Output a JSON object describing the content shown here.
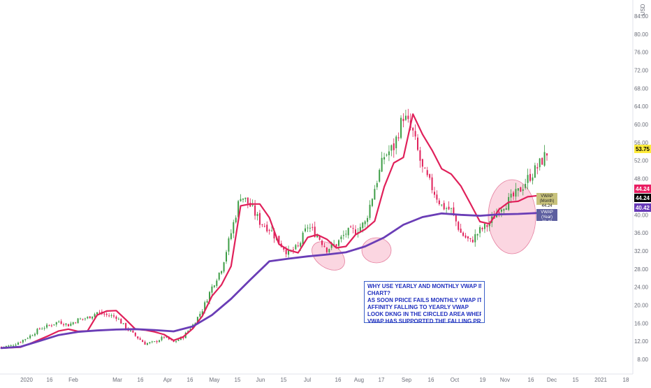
{
  "chart_data": {
    "type": "line",
    "currency_label": "USD",
    "x_tick_labels": [
      "2020",
      "16",
      "Feb",
      "Mar",
      "16",
      "Apr",
      "16",
      "May",
      "15",
      "Jun",
      "15",
      "Jul",
      "16",
      "Aug",
      "17",
      "Sep",
      "16",
      "Oct",
      "19",
      "Nov",
      "16",
      "Dec",
      "15",
      "2021",
      "18"
    ],
    "y_tick_labels": [
      "8.00",
      "12.00",
      "16.00",
      "20.00",
      "24.00",
      "28.00",
      "32.00",
      "36.00",
      "40.00",
      "44.00",
      "48.00",
      "52.00",
      "56.00",
      "60.00",
      "64.00",
      "68.00",
      "72.00",
      "76.00",
      "80.00",
      "84.00"
    ],
    "ylim": [
      6,
      86
    ],
    "grid": false,
    "last_price": "53.75",
    "price_tags": [
      {
        "value": "44.24",
        "color": "#e91e63",
        "text_color": "#ffffff"
      },
      {
        "value": "44.24",
        "color": "#000000",
        "text_color": "#ffffff"
      },
      {
        "value": "40.42",
        "color": "#673ab7",
        "text_color": "#ffffff"
      }
    ],
    "series": [
      {
        "name": "VWAP (Month)",
        "color": "#e0205a",
        "x": [
          0,
          4,
          8,
          12,
          16,
          20,
          24,
          28,
          32,
          36,
          40,
          44,
          48,
          52,
          56,
          60,
          64,
          68,
          72,
          76,
          80,
          84,
          88,
          92,
          96,
          100,
          104,
          108,
          112,
          116,
          120,
          124,
          128,
          132,
          136,
          140,
          144,
          148,
          152,
          156,
          160,
          164,
          168,
          172,
          176,
          180,
          184,
          188,
          192,
          196,
          200,
          204,
          208,
          212,
          216,
          220,
          224,
          228
        ],
        "y": [
          10.5,
          10.6,
          10.7,
          11.5,
          12.4,
          13.3,
          14.3,
          14.7,
          14.2,
          14.3,
          17.8,
          18.7,
          18.8,
          16.8,
          14.7,
          14.5,
          14.1,
          13.5,
          12.2,
          13.0,
          14.8,
          17.6,
          22.0,
          24.5,
          28.6,
          42.0,
          42.4,
          42.4,
          39.4,
          33.5,
          32.2,
          31.6,
          35.0,
          35.6,
          34.6,
          32.7,
          33.0,
          35.6,
          36.8,
          38.6,
          46.2,
          51.5,
          52.7,
          62.3,
          57.8,
          54.3,
          50.2,
          49.0,
          46.4,
          42.5,
          38.5,
          38.0,
          41.2,
          42.8,
          43.0,
          44.0,
          44.24,
          44.24
        ]
      },
      {
        "name": "VWAP (Year)",
        "color": "#6a3db6",
        "x": [
          0,
          8,
          16,
          24,
          32,
          40,
          48,
          56,
          64,
          72,
          80,
          88,
          96,
          104,
          112,
          120,
          128,
          136,
          144,
          152,
          160,
          168,
          176,
          184,
          192,
          200,
          208,
          216,
          224,
          228
        ],
        "y": [
          10.5,
          10.8,
          12.1,
          13.4,
          14.1,
          14.4,
          14.6,
          14.7,
          14.5,
          14.2,
          15.3,
          17.8,
          21.4,
          25.6,
          29.7,
          30.3,
          30.8,
          31.2,
          31.7,
          33.0,
          35.0,
          37.8,
          39.5,
          40.3,
          40.0,
          39.8,
          40.1,
          40.2,
          40.4,
          40.42
        ]
      },
      {
        "name": "Price",
        "color": "#3d9d46",
        "x": [
          0,
          4,
          8,
          12,
          16,
          20,
          24,
          28,
          32,
          36,
          40,
          44,
          48,
          52,
          56,
          60,
          64,
          68,
          72,
          76,
          80,
          84,
          88,
          92,
          96,
          100,
          104,
          108,
          112,
          116,
          120,
          124,
          128,
          132,
          136,
          140,
          144,
          148,
          152,
          156,
          160,
          164,
          168,
          172,
          176,
          180,
          184,
          188,
          192,
          196,
          200,
          204,
          208,
          212,
          216,
          220,
          224,
          228
        ],
        "y": [
          10.8,
          11.0,
          12.0,
          13.2,
          14.8,
          15.5,
          16.4,
          15.6,
          16.8,
          17.2,
          18.4,
          17.8,
          17.4,
          15.0,
          13.2,
          11.5,
          11.8,
          13.0,
          11.8,
          13.0,
          15.6,
          19.0,
          24.0,
          28.2,
          36.0,
          44.5,
          42.0,
          38.5,
          37.0,
          34.0,
          31.5,
          32.8,
          37.5,
          35.5,
          32.5,
          33.5,
          36.0,
          36.5,
          38.2,
          46.0,
          53.0,
          55.0,
          62.0,
          58.0,
          50.0,
          46.0,
          42.0,
          41.0,
          36.0,
          34.0,
          36.5,
          38.0,
          41.5,
          43.0,
          45.0,
          48.0,
          50.5,
          53.75
        ]
      }
    ],
    "callouts": [
      {
        "name": "VWAP (Month)",
        "value": "44.24"
      },
      {
        "name": "VWAP (Year)",
        "value": "40.42"
      }
    ]
  },
  "annotation": {
    "lines": [
      "WHY USE YEARLY AND MONTHLY VWAP IN THE",
      "CHART?",
      "AS SOON PRICE FAILS MONTHLY VWAP IT HAS HIGH",
      "AFFINITY FALLING TO YEARLY VWAP",
      "LOOK DKNG IN THE CIRCLED AREA  WHERE YEARLY",
      "VWAP HAS SUPPORTED THE FALLING PRICE."
    ],
    "color": "#1f2fbf"
  },
  "colors": {
    "up_candle": "#3d9d46",
    "down_candle": "#e0205a",
    "highlight_circle": "#f7b5c8",
    "axis_text": "#6a6d78",
    "last_price_bg": "#ffeb3b"
  }
}
